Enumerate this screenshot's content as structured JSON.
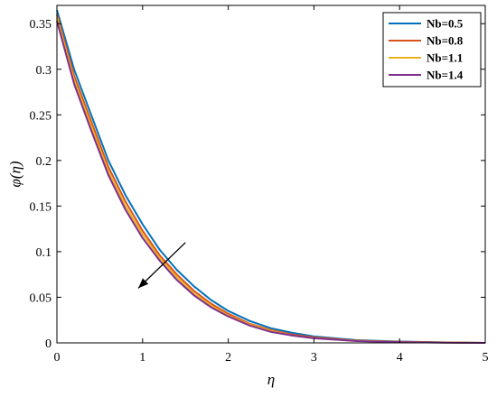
{
  "chart_data": {
    "type": "line",
    "title": "",
    "xlabel": "η",
    "ylabel": "φ(η)",
    "xlim": [
      0,
      5
    ],
    "ylim": [
      0,
      0.37
    ],
    "xticks": [
      0,
      1,
      2,
      3,
      4,
      5
    ],
    "xtick_labels": [
      "0",
      "1",
      "2",
      "3",
      "4",
      "5"
    ],
    "yticks": [
      0,
      0.05,
      0.1,
      0.15,
      0.2,
      0.25,
      0.3,
      0.35
    ],
    "ytick_labels": [
      "0",
      "0.05",
      "0.1",
      "0.15",
      "0.2",
      "0.25",
      "0.3",
      "0.35"
    ],
    "grid": false,
    "legend_position": "top-right",
    "x": [
      0,
      0.2,
      0.4,
      0.6,
      0.8,
      1.0,
      1.2,
      1.4,
      1.6,
      1.8,
      2.0,
      2.25,
      2.5,
      2.75,
      3.0,
      3.5,
      4.0,
      4.5,
      5.0
    ],
    "series": [
      {
        "name": "Nb=0.5",
        "color": "#0072BD",
        "values": [
          0.365,
          0.3,
          0.25,
          0.2,
          0.162,
          0.13,
          0.102,
          0.08,
          0.062,
          0.047,
          0.035,
          0.024,
          0.016,
          0.011,
          0.007,
          0.003,
          0.0015,
          0.0006,
          0.0
        ]
      },
      {
        "name": "Nb=0.8",
        "color": "#D95319",
        "values": [
          0.36,
          0.293,
          0.243,
          0.193,
          0.155,
          0.123,
          0.096,
          0.075,
          0.057,
          0.043,
          0.032,
          0.021,
          0.014,
          0.009,
          0.006,
          0.0025,
          0.0012,
          0.0005,
          0.0
        ]
      },
      {
        "name": "Nb=1.1",
        "color": "#EDB120",
        "values": [
          0.357,
          0.288,
          0.238,
          0.188,
          0.15,
          0.119,
          0.093,
          0.072,
          0.054,
          0.041,
          0.03,
          0.02,
          0.013,
          0.008,
          0.005,
          0.0022,
          0.001,
          0.0004,
          0.0
        ]
      },
      {
        "name": "Nb=1.4",
        "color": "#7E2F8E",
        "values": [
          0.353,
          0.284,
          0.233,
          0.184,
          0.146,
          0.115,
          0.09,
          0.069,
          0.052,
          0.039,
          0.029,
          0.019,
          0.012,
          0.008,
          0.005,
          0.002,
          0.0009,
          0.0003,
          0.0
        ]
      }
    ],
    "annotations": [
      {
        "type": "arrow",
        "from": [
          1.5,
          0.11
        ],
        "to": [
          0.95,
          0.06
        ],
        "color": "#000000"
      }
    ]
  }
}
